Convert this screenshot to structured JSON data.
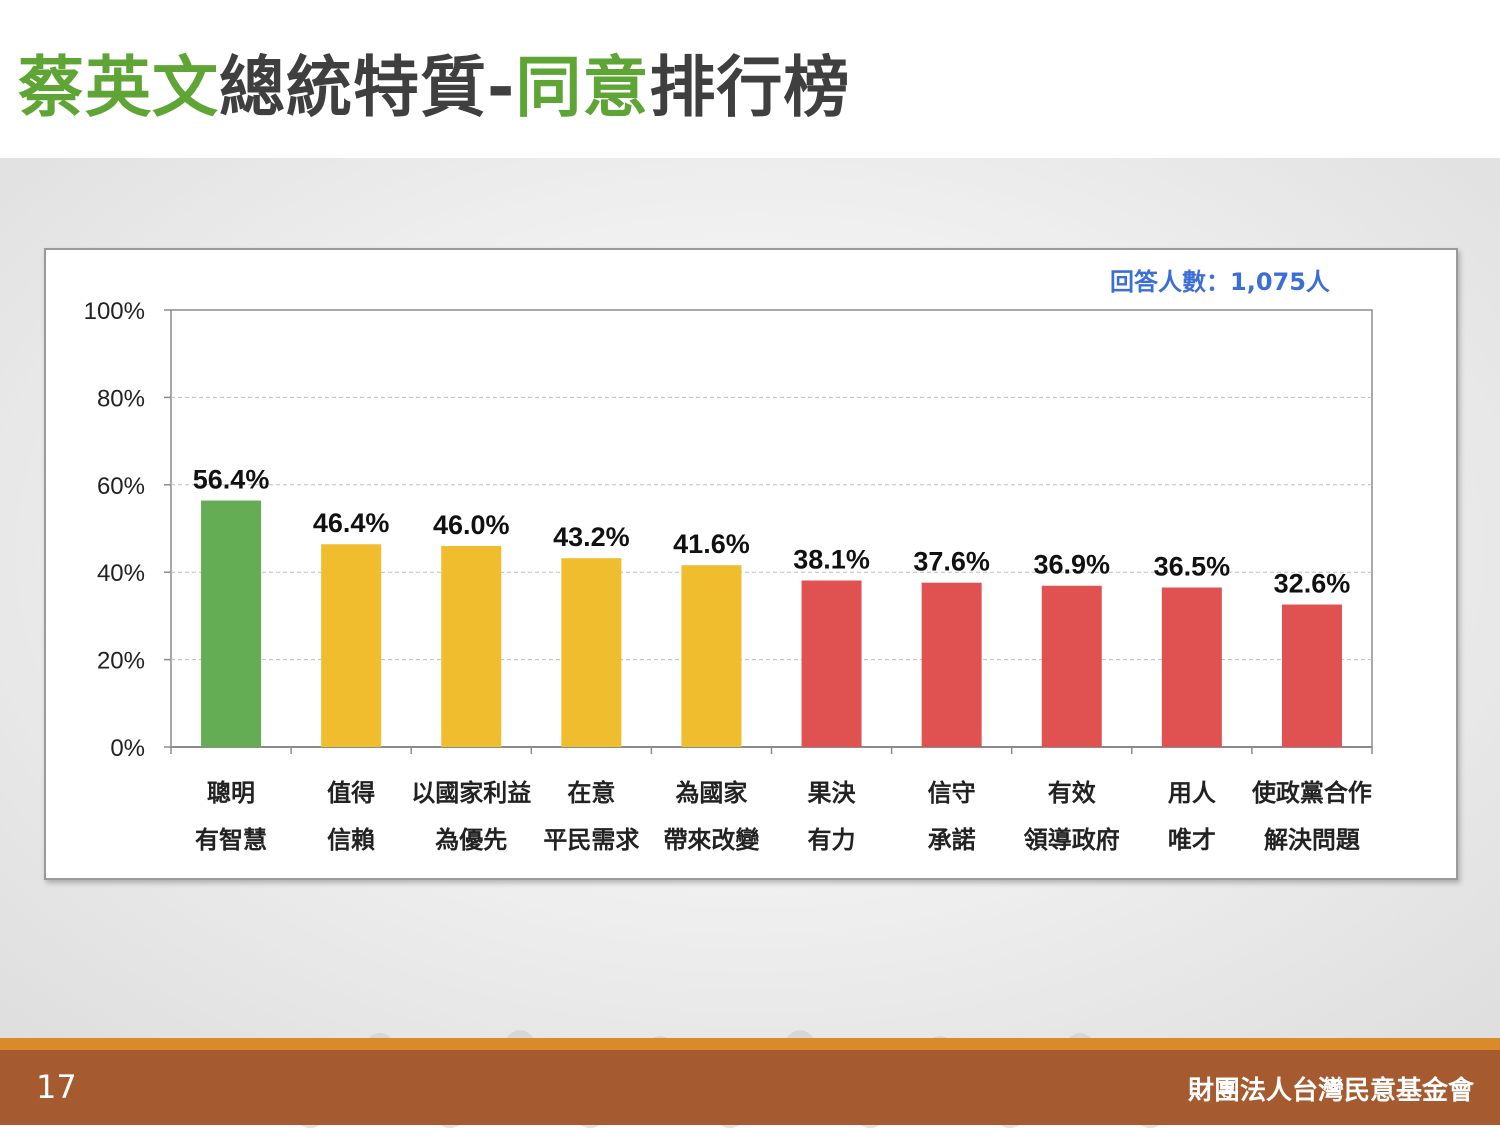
{
  "header": {
    "title_part1": "蔡英文",
    "title_part2": "總統特質-",
    "title_part3": "同意",
    "title_part4": "排行榜"
  },
  "respondents": "回答人數：1,075人",
  "footer": {
    "page_number": "17",
    "organization": "財團法人台灣民意基金會"
  },
  "chart_data": {
    "type": "bar",
    "categories": [
      [
        "聰明",
        "有智慧"
      ],
      [
        "值得",
        "信賴"
      ],
      [
        "以國家利益",
        "為優先"
      ],
      [
        "在意",
        "平民需求"
      ],
      [
        "為國家",
        "帶來改變"
      ],
      [
        "果決",
        "有力"
      ],
      [
        "信守",
        "承諾"
      ],
      [
        "有效",
        "領導政府"
      ],
      [
        "用人",
        "唯才"
      ],
      [
        "使政黨合作",
        "解決問題"
      ]
    ],
    "values": [
      56.4,
      46.4,
      46.0,
      43.2,
      41.6,
      38.1,
      37.6,
      36.9,
      36.5,
      32.6
    ],
    "value_labels": [
      "56.4%",
      "46.4%",
      "46.0%",
      "43.2%",
      "41.6%",
      "38.1%",
      "37.6%",
      "36.9%",
      "36.5%",
      "32.6%"
    ],
    "bar_colors": [
      "#65ad54",
      "#efbd2e",
      "#efbd2e",
      "#efbd2e",
      "#efbd2e",
      "#e05252",
      "#e05252",
      "#e05252",
      "#e05252",
      "#e05252"
    ],
    "ylim": [
      0,
      100
    ],
    "yticks": [
      0,
      20,
      40,
      60,
      80,
      100
    ],
    "ytick_labels": [
      "0%",
      "20%",
      "40%",
      "60%",
      "80%",
      "100%"
    ],
    "grid": true
  }
}
